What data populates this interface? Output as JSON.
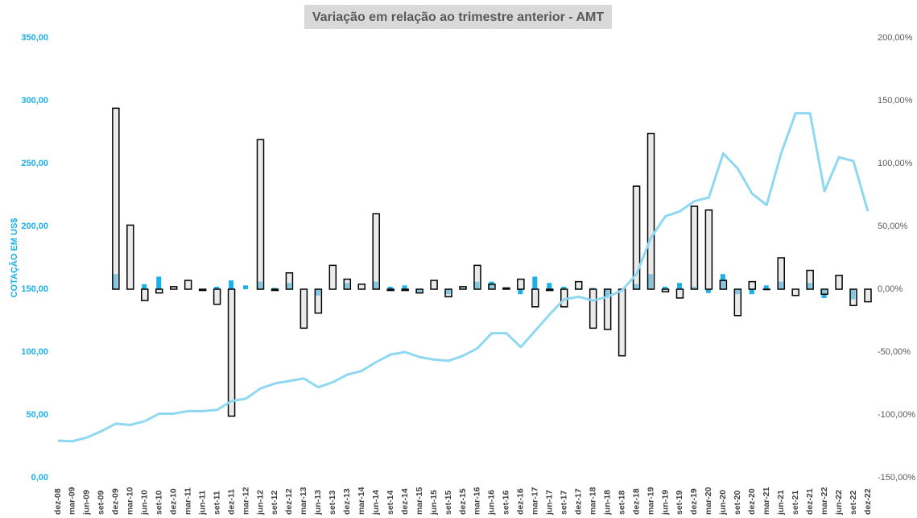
{
  "chart_data": {
    "type": "bar-line",
    "title": "Variação em relação ao trimestre anterior - AMT",
    "ylabel": "COTAÇÃO EM US$",
    "categories": [
      "dez-08",
      "mar-09",
      "jun-09",
      "set-09",
      "dez-09",
      "mar-10",
      "jun-10",
      "set-10",
      "dez-10",
      "mar-11",
      "jun-11",
      "set-11",
      "dez-11",
      "mar-12",
      "jun-12",
      "set-12",
      "dez-12",
      "mar-13",
      "jun-13",
      "set-13",
      "dez-13",
      "mar-14",
      "jun-14",
      "set-14",
      "dez-14",
      "mar-15",
      "jun-15",
      "set-15",
      "dez-15",
      "mar-16",
      "jun-16",
      "set-16",
      "dez-16",
      "mar-17",
      "jun-17",
      "set-17",
      "dez-17",
      "mar-18",
      "jun-18",
      "set-18",
      "dez-18",
      "mar-19",
      "jun-19",
      "set-19",
      "dez-19",
      "mar-20",
      "jun-20",
      "set-20",
      "dez-20",
      "mar-21",
      "jun-21",
      "set-21",
      "dez-21",
      "mar-22",
      "jun-22",
      "set-22",
      "dez-22"
    ],
    "series": [
      {
        "type": "bar",
        "axis": "y2",
        "color": "#1ab0e8",
        "values": [
          null,
          null,
          null,
          null,
          12,
          0,
          4,
          10,
          0,
          0,
          -1,
          2,
          7,
          3,
          6,
          1,
          5,
          0,
          -5,
          0,
          5,
          0,
          6,
          2,
          3,
          -3,
          0,
          -4,
          1,
          6,
          6,
          0,
          -4,
          10,
          5,
          2,
          1,
          1,
          -6,
          0,
          4,
          12,
          2,
          5,
          2,
          -3,
          12,
          -4,
          -4,
          3,
          6,
          0,
          5,
          -7,
          0,
          -8,
          0
        ]
      },
      {
        "type": "bar",
        "axis": "y2",
        "color": "#d9d9d9",
        "values": [
          null,
          null,
          null,
          null,
          144,
          51,
          -9,
          -3,
          2,
          7,
          -1,
          -12,
          -101,
          null,
          119,
          -1,
          13,
          -31,
          -19,
          19,
          8,
          4,
          60,
          -1,
          -1,
          -3,
          7,
          -6,
          2,
          19,
          4,
          1,
          8,
          -14,
          -1,
          -14,
          6,
          -31,
          -32,
          -53,
          82,
          124,
          -2,
          -7,
          66,
          63,
          7,
          -21,
          6,
          0,
          25,
          -5,
          15,
          -4,
          11,
          -13,
          -10
        ]
      },
      {
        "type": "line",
        "axis": "y",
        "color": "#8fd8f2",
        "values": [
          29.5,
          29,
          32,
          37,
          43,
          42,
          45,
          51,
          51,
          53,
          53,
          54,
          61,
          63,
          71,
          75,
          77,
          79,
          72,
          76,
          82,
          85,
          92,
          98,
          100,
          96,
          94,
          93,
          97,
          103,
          115,
          115,
          104,
          117,
          130,
          142,
          144,
          141,
          144,
          149,
          162,
          191,
          208,
          212,
          220,
          223,
          258,
          246,
          226,
          217,
          258,
          290,
          290,
          228,
          255,
          252,
          212
        ]
      }
    ],
    "ylim": [
      0,
      350
    ],
    "yticks": [
      {
        "value": 0,
        "label": "0,00"
      },
      {
        "value": 50,
        "label": "50,00"
      },
      {
        "value": 100,
        "label": "100,00"
      },
      {
        "value": 150,
        "label": "150,00"
      },
      {
        "value": 200,
        "label": "200,00"
      },
      {
        "value": 250,
        "label": "250,00"
      },
      {
        "value": 300,
        "label": "300,00"
      },
      {
        "value": 350,
        "label": "350,00"
      }
    ],
    "y2lim": [
      -150,
      200
    ],
    "y2ticks": [
      {
        "value": -150,
        "label": "-150,00%"
      },
      {
        "value": -100,
        "label": "-100,00%"
      },
      {
        "value": -50,
        "label": "-50,00%"
      },
      {
        "value": 0,
        "label": "0,00%"
      },
      {
        "value": 50,
        "label": "50,00%"
      },
      {
        "value": 100,
        "label": "100,00%"
      },
      {
        "value": 150,
        "label": "150,00%"
      },
      {
        "value": 200,
        "label": "200,00%"
      }
    ],
    "grid": false
  }
}
